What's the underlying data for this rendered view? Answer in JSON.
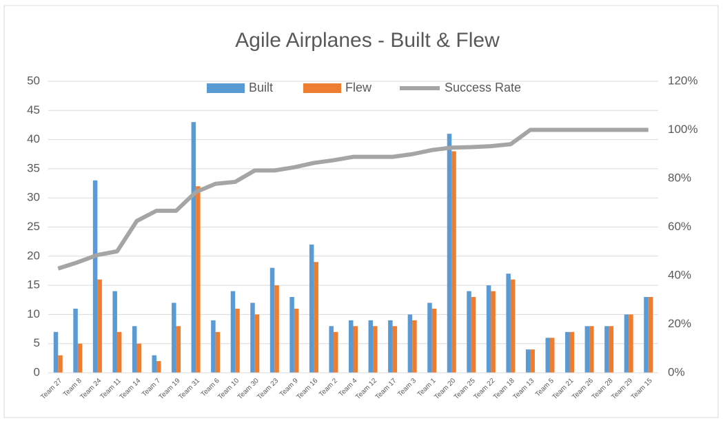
{
  "chart_data": {
    "type": "bar",
    "title": "Agile Airplanes - Built & Flew",
    "categories": [
      "Team 27",
      "Team 8",
      "Team 24",
      "Team 11",
      "Team 14",
      "Team 7",
      "Team 19",
      "Team 31",
      "Team 6",
      "Team 10",
      "Team 30",
      "Team 23",
      "Team 9",
      "Team 16",
      "Team 2",
      "Team 4",
      "Team 12",
      "Team 17",
      "Team 3",
      "Team 1",
      "Team 20",
      "Team 25",
      "Team 22",
      "Team 18",
      "Team 13",
      "Team 5",
      "Team 21",
      "Team 26",
      "Team 28",
      "Team 29",
      "Team 15"
    ],
    "series": [
      {
        "name": "Built",
        "color": "#5b9bd5",
        "type": "bar",
        "values": [
          7,
          11,
          33,
          14,
          8,
          3,
          12,
          43,
          9,
          14,
          12,
          18,
          13,
          22,
          8,
          9,
          9,
          9,
          10,
          12,
          41,
          14,
          15,
          17,
          4,
          6,
          7,
          8,
          8,
          10,
          13
        ]
      },
      {
        "name": "Flew",
        "color": "#ed7d31",
        "type": "bar",
        "values": [
          3,
          5,
          16,
          7,
          5,
          2,
          8,
          32,
          7,
          11,
          10,
          15,
          11,
          19,
          7,
          8,
          8,
          8,
          9,
          11,
          38,
          13,
          14,
          16,
          4,
          6,
          7,
          8,
          8,
          10,
          13
        ]
      },
      {
        "name": "Success Rate",
        "color": "#a5a5a5",
        "type": "line",
        "axis": "y2",
        "values": [
          42.9,
          45.5,
          48.5,
          50,
          62.5,
          66.7,
          66.7,
          74.4,
          77.8,
          78.6,
          83.3,
          83.3,
          84.6,
          86.4,
          87.5,
          88.9,
          88.9,
          88.9,
          90,
          91.7,
          92.7,
          92.9,
          93.3,
          94.1,
          100,
          100,
          100,
          100,
          100,
          100,
          100
        ]
      }
    ],
    "ylim": [
      0,
      50
    ],
    "yticks": [
      0,
      5,
      10,
      15,
      20,
      25,
      30,
      35,
      40,
      45,
      50
    ],
    "y2lim": [
      0,
      120
    ],
    "y2ticks": [
      {
        "value": 0,
        "label": "0%"
      },
      {
        "value": 20,
        "label": "20%"
      },
      {
        "value": 40,
        "label": "40%"
      },
      {
        "value": 60,
        "label": "60%"
      },
      {
        "value": 80,
        "label": "80%"
      },
      {
        "value": 100,
        "label": "100%"
      },
      {
        "value": 120,
        "label": "120%"
      }
    ],
    "grid": true,
    "legend": "top"
  }
}
